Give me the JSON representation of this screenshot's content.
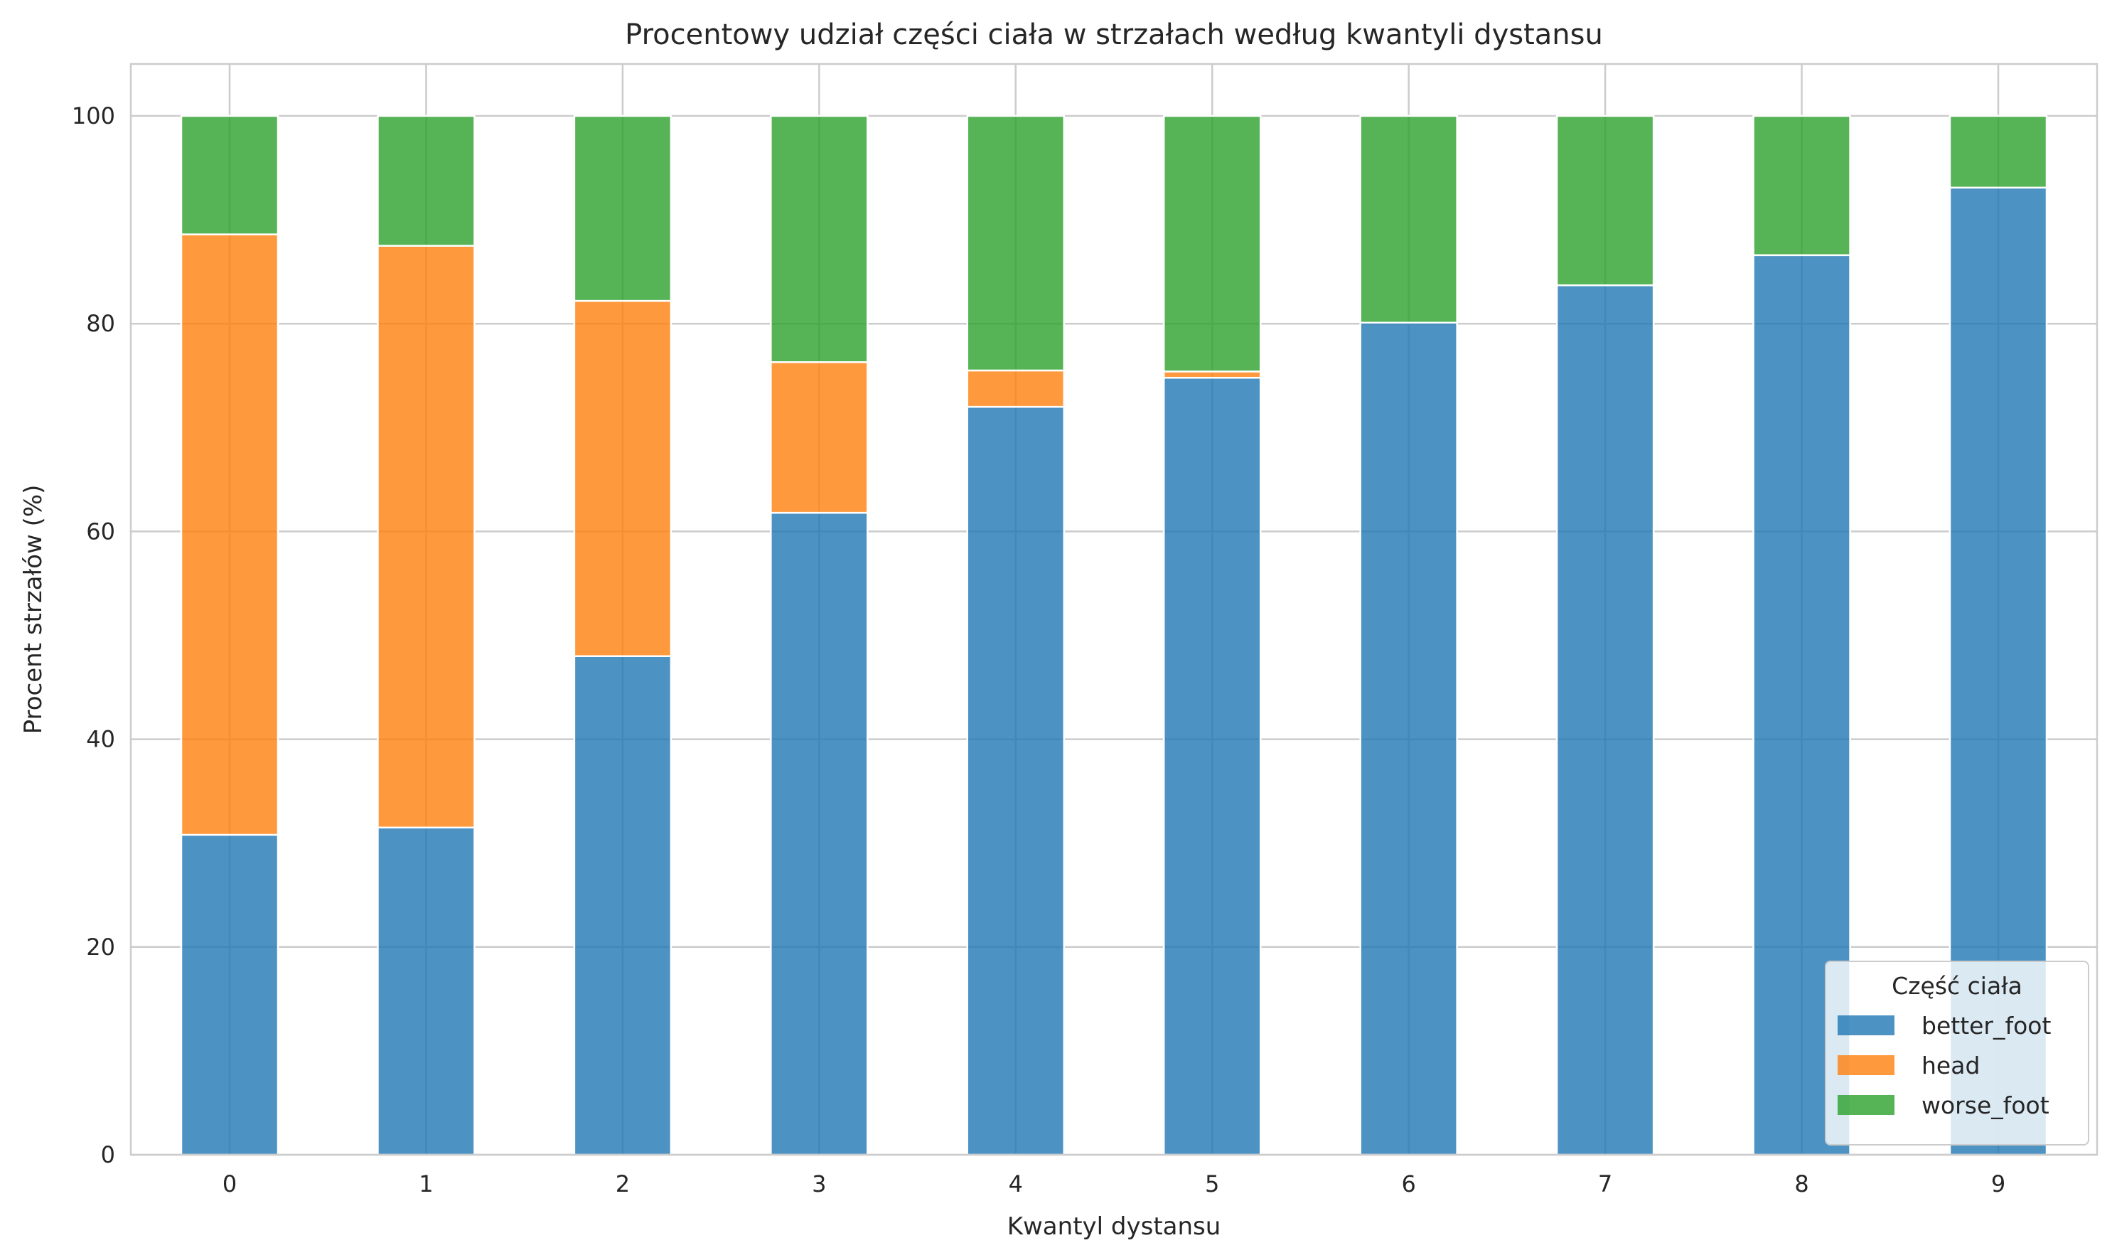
{
  "chart_data": {
    "type": "bar",
    "stacked": true,
    "title": "Procentowy udział części ciała w strzałach według kwantyli dystansu",
    "xlabel": "Kwantyl dystansu",
    "ylabel": "Procent strzałów (%)",
    "categories": [
      "0",
      "1",
      "2",
      "3",
      "4",
      "5",
      "6",
      "7",
      "8",
      "9"
    ],
    "series": [
      {
        "name": "better_foot",
        "color": "#1f77b4",
        "values": [
          30.8,
          31.5,
          48.0,
          61.8,
          72.0,
          74.8,
          80.1,
          83.7,
          86.6,
          93.1
        ]
      },
      {
        "name": "head",
        "color": "#ff7f0e",
        "values": [
          57.8,
          56.0,
          34.2,
          14.5,
          3.5,
          0.6,
          0.0,
          0.0,
          0.0,
          0.0
        ]
      },
      {
        "name": "worse_foot",
        "color": "#2ca02c",
        "values": [
          11.4,
          12.5,
          17.8,
          23.7,
          24.5,
          24.6,
          19.9,
          16.3,
          13.4,
          6.9
        ]
      }
    ],
    "ylim": [
      0,
      105
    ],
    "yticks": [
      0,
      20,
      40,
      60,
      80,
      100
    ],
    "grid": true,
    "legend": {
      "title": "Część ciała",
      "position": "lower-right"
    }
  }
}
